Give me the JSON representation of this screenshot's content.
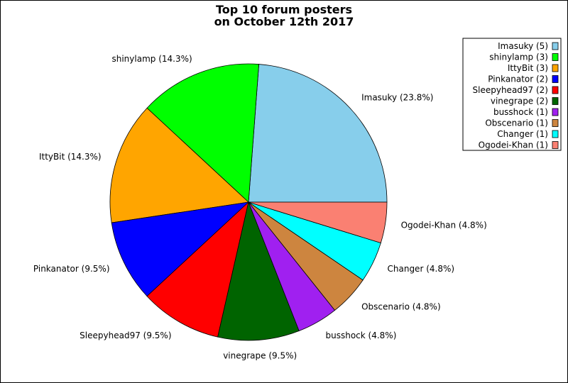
{
  "chart_data": {
    "type": "pie",
    "title_lines": [
      "Top 10 forum posters",
      "on October 12th 2017"
    ],
    "slices": [
      {
        "label": "Imasuky",
        "value": 5,
        "percent_label": "Imasuky (23.8%)",
        "legend_label": "Imasuky (5)",
        "color": "#87CEEB"
      },
      {
        "label": "shinylamp",
        "value": 3,
        "percent_label": "shinylamp (14.3%)",
        "legend_label": "shinylamp (3)",
        "color": "#00FF00"
      },
      {
        "label": "IttyBit",
        "value": 3,
        "percent_label": "IttyBit (14.3%)",
        "legend_label": "IttyBit (3)",
        "color": "#FFA500"
      },
      {
        "label": "Pinkanator",
        "value": 2,
        "percent_label": "Pinkanator (9.5%)",
        "legend_label": "Pinkanator (2)",
        "color": "#0000FF"
      },
      {
        "label": "Sleepyhead97",
        "value": 2,
        "percent_label": "Sleepyhead97 (9.5%)",
        "legend_label": "Sleepyhead97 (2)",
        "color": "#FF0000"
      },
      {
        "label": "vinegrape",
        "value": 2,
        "percent_label": "vinegrape (9.5%)",
        "legend_label": "vinegrape (2)",
        "color": "#006400"
      },
      {
        "label": "busshock",
        "value": 1,
        "percent_label": "busshock (4.8%)",
        "legend_label": "busshock (1)",
        "color": "#A020F0"
      },
      {
        "label": "Obscenario",
        "value": 1,
        "percent_label": "Obscenario (4.8%)",
        "legend_label": "Obscenario (1)",
        "color": "#CD853F"
      },
      {
        "label": "Changer",
        "value": 1,
        "percent_label": "Changer (4.8%)",
        "legend_label": "Changer (1)",
        "color": "#00FFFF"
      },
      {
        "label": "Ogodei-Khan",
        "value": 1,
        "percent_label": "Ogodei-Khan (4.8%)",
        "legend_label": "Ogodei-Khan (1)",
        "color": "#FA8072"
      }
    ],
    "start_angle_deg": 0,
    "direction": "counterclockwise",
    "legend_position": "top-right"
  }
}
